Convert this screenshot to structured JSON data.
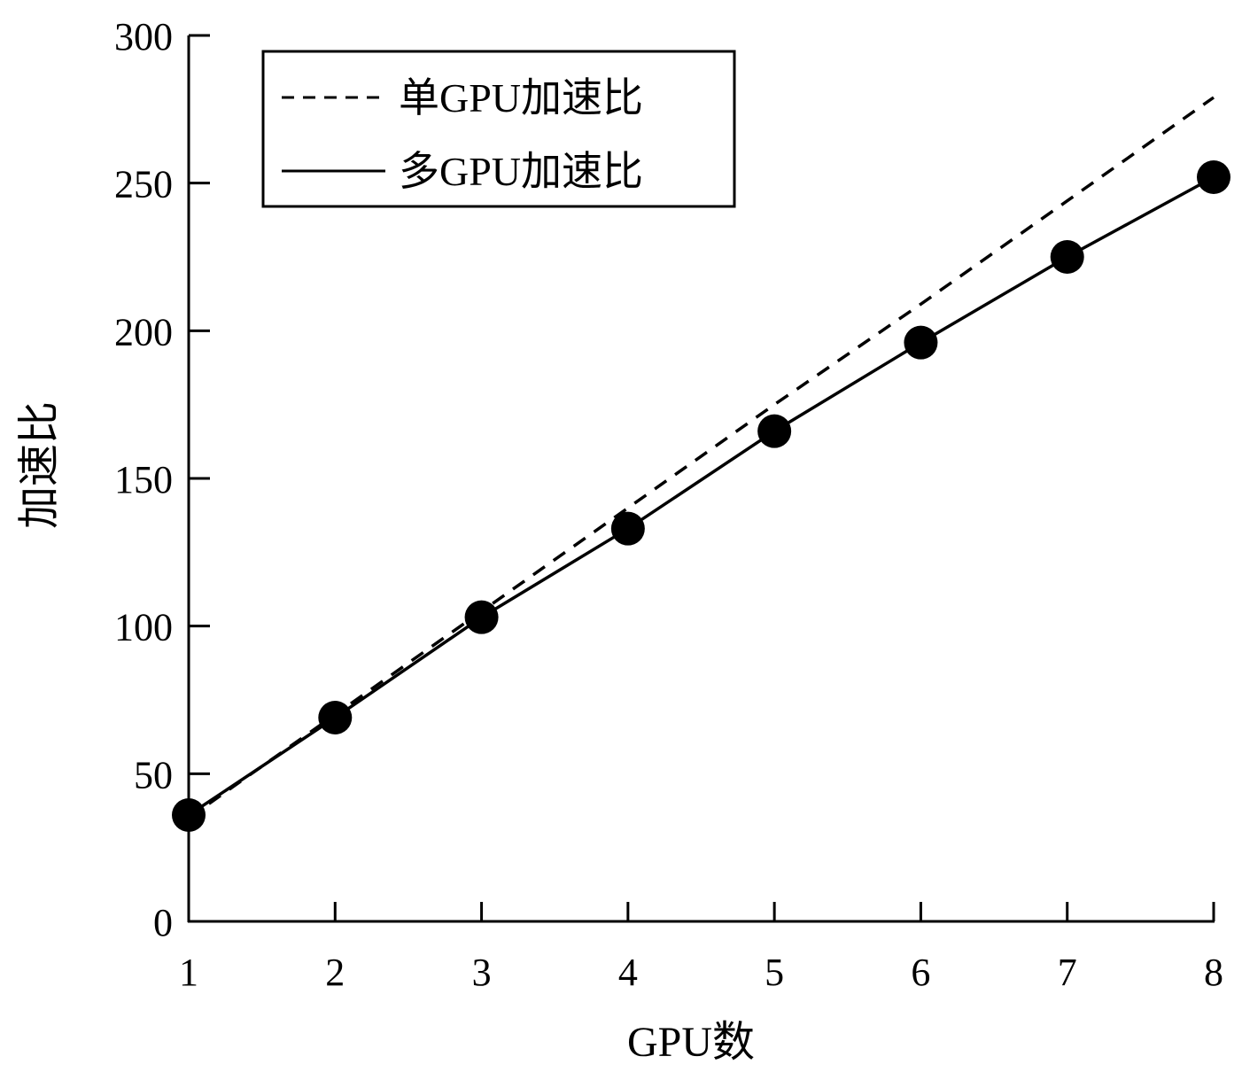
{
  "chart_data": {
    "type": "line",
    "xlabel": "GPU数",
    "ylabel": "加速比",
    "x": [
      1,
      2,
      3,
      4,
      5,
      6,
      7,
      8
    ],
    "xlim": [
      1,
      8
    ],
    "ylim": [
      0,
      300
    ],
    "yticks": [
      0,
      50,
      100,
      150,
      200,
      250,
      300
    ],
    "xticks": [
      1,
      2,
      3,
      4,
      5,
      6,
      7,
      8
    ],
    "grid": false,
    "legend_position": "top-left",
    "series": [
      {
        "name": "单GPU加速比",
        "style": "dashed",
        "markers": false,
        "color": "#000000",
        "values": [
          35,
          70,
          105,
          140,
          175,
          209,
          244,
          279
        ]
      },
      {
        "name": "多GPU加速比",
        "style": "solid",
        "markers": true,
        "color": "#000000",
        "values": [
          36,
          69,
          103,
          133,
          166,
          196,
          225,
          252
        ]
      }
    ]
  }
}
